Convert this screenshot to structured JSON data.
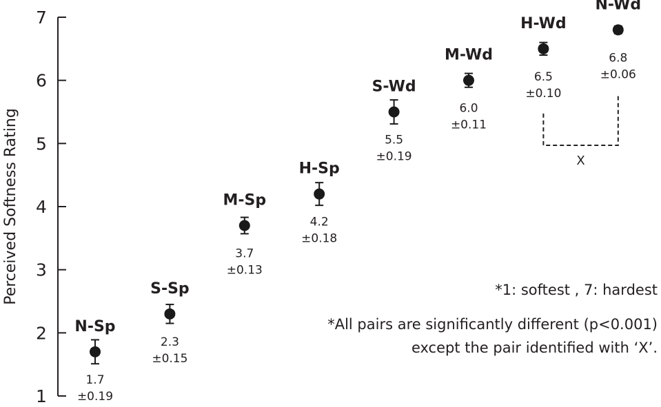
{
  "chart_data": {
    "type": "scatter",
    "title": "",
    "xlabel": "",
    "ylabel": "Perceived Softness Rating",
    "ylim": [
      1,
      7
    ],
    "yticks": [
      1,
      2,
      3,
      4,
      5,
      6,
      7
    ],
    "grid": false,
    "error_bars": true,
    "points": [
      {
        "label": "N-Sp",
        "value": 1.7,
        "value_text": "1.7",
        "err": 0.19,
        "err_text": "±0.19"
      },
      {
        "label": "S-Sp",
        "value": 2.3,
        "value_text": "2.3",
        "err": 0.15,
        "err_text": "±0.15"
      },
      {
        "label": "M-Sp",
        "value": 3.7,
        "value_text": "3.7",
        "err": 0.13,
        "err_text": "±0.13"
      },
      {
        "label": "H-Sp",
        "value": 4.2,
        "value_text": "4.2",
        "err": 0.18,
        "err_text": "±0.18"
      },
      {
        "label": "S-Wd",
        "value": 5.5,
        "value_text": "5.5",
        "err": 0.19,
        "err_text": "±0.19"
      },
      {
        "label": "M-Wd",
        "value": 6.0,
        "value_text": "6.0",
        "err": 0.11,
        "err_text": "±0.11"
      },
      {
        "label": "H-Wd",
        "value": 6.5,
        "value_text": "6.5",
        "err": 0.1,
        "err_text": "±0.10"
      },
      {
        "label": "N-Wd",
        "value": 6.8,
        "value_text": "6.8",
        "err": 0.06,
        "err_text": "±0.06"
      }
    ],
    "bracket": {
      "from": "H-Wd",
      "to": "N-Wd",
      "label": "X"
    },
    "annotations": [
      "*1: softest ,  7: hardest",
      "*All pairs are significantly different (p<0.001)",
      "except the pair identified with ‘X’."
    ],
    "colors": {
      "marker": "#1a1a1a",
      "text": "#231f20"
    }
  }
}
